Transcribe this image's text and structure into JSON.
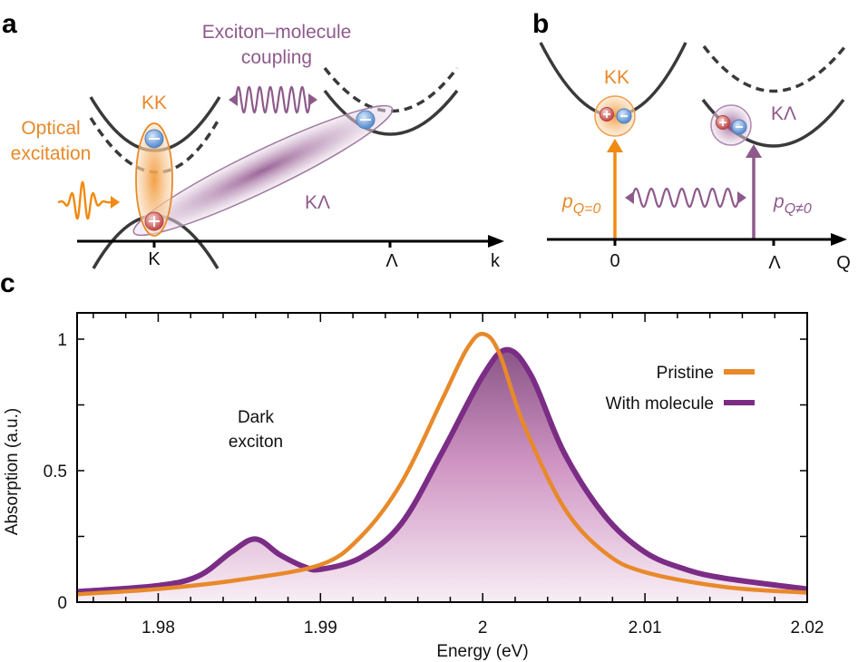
{
  "panel_a": {
    "label": "a",
    "kk_label": "KK",
    "optical_excitation": [
      "Optical",
      "excitation"
    ],
    "coupling": [
      "Exciton–molecule",
      "coupling"
    ],
    "kl_label": "KΛ",
    "axis_ticks": [
      "K",
      "Λ"
    ],
    "axis_label": "k"
  },
  "panel_b": {
    "label": "b",
    "kk_label": "KK",
    "kl_label": "KΛ",
    "p_q0": {
      "base": "p",
      "sub": "Q=0"
    },
    "p_qn0": {
      "base": "p",
      "sub": "Q≠0"
    },
    "axis_ticks": [
      "0",
      "Λ"
    ],
    "axis_label": "Q"
  },
  "panel_c": {
    "label": "c",
    "annotation": [
      "Dark",
      "exciton"
    ]
  },
  "colors": {
    "orange": "#e8892a",
    "purple": "#7b2d86",
    "purple_light": "#8e5a8c",
    "electron": "#6a9fd8",
    "hole": "#c85a5a",
    "band": "#3a3a3a"
  },
  "chart_data": {
    "type": "line",
    "xlabel": "Energy (eV)",
    "ylabel": "Absorption (a.u.)",
    "xlim": [
      1.975,
      2.02
    ],
    "ylim": [
      0,
      1.1
    ],
    "xticks": [
      1.98,
      1.99,
      2,
      2.01,
      2.02
    ],
    "xtick_labels": [
      "1.98",
      "1.99",
      "2",
      "2.01",
      "2.02"
    ],
    "yticks": [
      0,
      0.5,
      1
    ],
    "ytick_labels": [
      "0",
      "0.5",
      "1"
    ],
    "grid": false,
    "legend_placement": "top-right",
    "series": [
      {
        "name": "Pristine",
        "color": "#e8892a",
        "x": [
          1.975,
          1.98,
          1.985,
          1.99,
          1.9925,
          1.995,
          1.9975,
          1.999,
          2.0,
          2.001,
          2.0025,
          2.005,
          2.0075,
          2.01,
          2.015,
          2.02
        ],
        "y": [
          0.03,
          0.05,
          0.085,
          0.142,
          0.25,
          0.455,
          0.77,
          0.96,
          1.02,
          0.95,
          0.68,
          0.36,
          0.19,
          0.114,
          0.057,
          0.036
        ]
      },
      {
        "name": "With molecule",
        "color": "#7b2d86",
        "filled": true,
        "x": [
          1.975,
          1.98,
          1.9825,
          1.9845,
          1.986,
          1.9875,
          1.989,
          1.99,
          1.9925,
          1.995,
          1.9975,
          2.0,
          2.0015,
          2.003,
          2.005,
          2.0075,
          2.01,
          2.0125,
          2.015,
          2.02
        ],
        "y": [
          0.04,
          0.063,
          0.1,
          0.19,
          0.24,
          0.18,
          0.135,
          0.125,
          0.17,
          0.3,
          0.57,
          0.86,
          0.96,
          0.86,
          0.57,
          0.33,
          0.19,
          0.125,
          0.09,
          0.05
        ]
      }
    ]
  }
}
